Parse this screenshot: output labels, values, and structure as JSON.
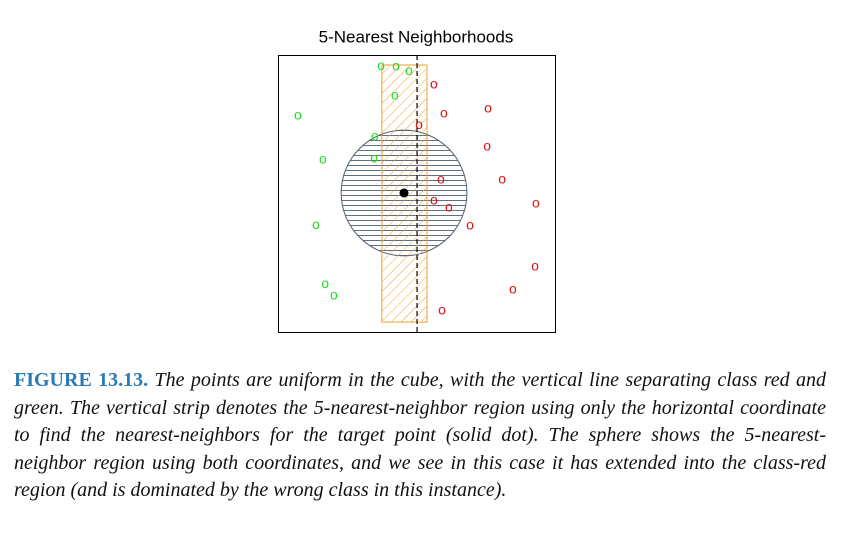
{
  "chart_data": {
    "type": "scatter",
    "title": "5-Nearest Neighborhoods",
    "marker": "o",
    "xlim": [
      0,
      1
    ],
    "ylim": [
      0,
      1
    ],
    "series": [
      {
        "name": "green",
        "color": "#22dd22",
        "x": [
          0.372,
          0.426,
          0.473,
          0.422,
          0.072,
          0.35,
          0.162,
          0.347,
          0.137,
          0.17,
          0.202
        ],
        "values": [
          0.96,
          0.957,
          0.942,
          0.852,
          0.78,
          0.704,
          0.621,
          0.625,
          0.386,
          0.173,
          0.13
        ]
      },
      {
        "name": "red",
        "color": "#e01010",
        "x": [
          0.563,
          0.599,
          0.758,
          0.509,
          0.755,
          0.588,
          0.809,
          0.563,
          0.617,
          0.931,
          0.693,
          0.928,
          0.848,
          0.592
        ],
        "values": [
          0.892,
          0.787,
          0.805,
          0.747,
          0.668,
          0.549,
          0.549,
          0.473,
          0.448,
          0.462,
          0.383,
          0.235,
          0.152,
          0.076
        ]
      }
    ],
    "target": [
      0.455,
      0.502
    ],
    "radius": 0.227,
    "strip": [
      0.375,
      0.538
    ],
    "strip_y": [
      0.036,
      0.964
    ],
    "boundary": 0.502
  },
  "caption": {
    "label": "FIGURE 13.13.",
    "text": "The points are uniform in the cube, with the vertical line separating class red and green. The vertical strip denotes the 5-nearest-neighbor region using only the horizontal coordinate to find the nearest-neighbors for the target point (solid dot). The sphere shows the 5-nearest-neighbor region using both coordinates, and we see in this case it has extended into the class-red region (and is dominated by the wrong class in this instance)."
  }
}
